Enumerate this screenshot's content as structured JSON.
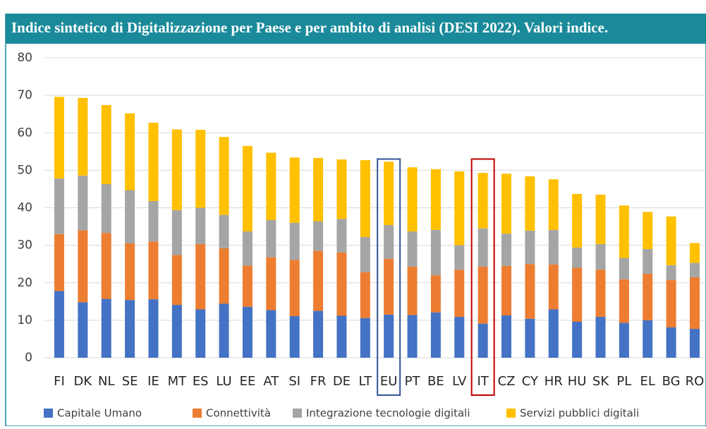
{
  "chart_data": {
    "type": "stacked_bar",
    "title": "Indice sintetico di Digitalizzazione per Paese e per ambito di analisi (DESI 2022). Valori indice.",
    "categories": [
      "FI",
      "DK",
      "NL",
      "SE",
      "IE",
      "MT",
      "ES",
      "LU",
      "EE",
      "AT",
      "SI",
      "FR",
      "DE",
      "LT",
      "EU",
      "PT",
      "BE",
      "LV",
      "IT",
      "CZ",
      "CY",
      "HR",
      "HU",
      "SK",
      "PL",
      "EL",
      "BG",
      "RO"
    ],
    "series": [
      {
        "name": "Capitale Umano",
        "color": "#4472c4",
        "values": [
          17.8,
          14.8,
          15.7,
          15.4,
          15.6,
          14.1,
          12.9,
          14.4,
          13.6,
          12.7,
          11.1,
          12.5,
          11.2,
          10.6,
          11.5,
          11.4,
          12.1,
          10.9,
          9.1,
          11.3,
          10.4,
          12.9,
          9.6,
          10.9,
          9.3,
          10.0,
          8.1,
          7.7
        ]
      },
      {
        "name": "Connettività",
        "color": "#ed7d31",
        "values": [
          15.2,
          19.2,
          17.6,
          15.1,
          15.4,
          13.3,
          17.4,
          14.8,
          11.0,
          14.1,
          15.0,
          16.0,
          16.9,
          12.2,
          14.9,
          12.9,
          9.9,
          12.6,
          15.2,
          13.2,
          14.6,
          12.0,
          14.4,
          12.6,
          11.6,
          12.4,
          12.6,
          13.8
        ]
      },
      {
        "name": "Integrazione tecnologie digitali",
        "color": "#a5a5a5",
        "values": [
          14.8,
          14.6,
          13.0,
          14.2,
          10.8,
          12.0,
          9.7,
          8.9,
          9.1,
          9.9,
          9.9,
          7.9,
          8.9,
          9.4,
          9.0,
          9.4,
          12.1,
          6.5,
          10.2,
          8.6,
          8.9,
          9.2,
          5.4,
          6.8,
          5.7,
          6.6,
          4.0,
          3.8
        ]
      },
      {
        "name": "Servizi pubblici digitali",
        "color": "#ffc000",
        "values": [
          21.8,
          20.7,
          21.1,
          20.5,
          20.9,
          21.5,
          20.8,
          20.8,
          22.8,
          18.0,
          17.4,
          16.9,
          15.9,
          20.5,
          16.9,
          17.1,
          16.2,
          19.7,
          14.8,
          16.0,
          14.5,
          13.5,
          14.3,
          13.2,
          14.0,
          9.9,
          13.0,
          5.3
        ]
      }
    ],
    "ylim": [
      0,
      80
    ],
    "yticks": [
      0,
      10,
      20,
      30,
      40,
      50,
      60,
      70,
      80
    ],
    "grid": true,
    "highlights": [
      {
        "index": 14,
        "color": "#2f5597"
      },
      {
        "index": 18,
        "color": "#c00000"
      }
    ]
  }
}
